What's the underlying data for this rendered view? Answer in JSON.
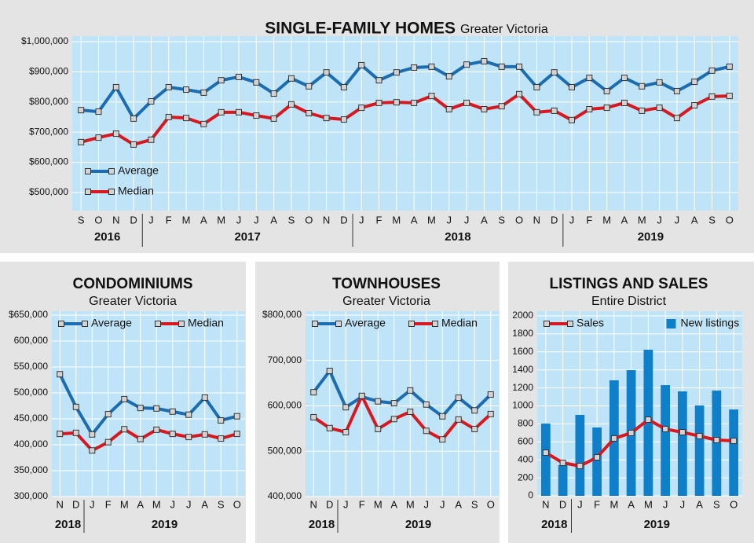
{
  "chart_data": [
    {
      "type": "line",
      "title": "SINGLE-FAMILY HOMES",
      "subtitle": "Greater Victoria",
      "categories": [
        "S",
        "O",
        "N",
        "D",
        "J",
        "F",
        "M",
        "A",
        "M",
        "J",
        "J",
        "A",
        "S",
        "O",
        "N",
        "D",
        "J",
        "F",
        "M",
        "A",
        "M",
        "J",
        "J",
        "A",
        "S",
        "O",
        "N",
        "D",
        "J",
        "F",
        "M",
        "A",
        "M",
        "J",
        "J",
        "A",
        "S",
        "O"
      ],
      "years": [
        "2016",
        "2017",
        "2018",
        "2019"
      ],
      "series": [
        {
          "name": "Average",
          "color": "#1b6cb0",
          "values": [
            773000,
            768000,
            849000,
            745000,
            802000,
            849000,
            841000,
            831000,
            872000,
            883000,
            865000,
            828000,
            878000,
            852000,
            898000,
            849000,
            922000,
            872000,
            898000,
            914000,
            917000,
            885000,
            924000,
            935000,
            917000,
            917000,
            849000,
            898000,
            849000,
            880000,
            836000,
            880000,
            852000,
            865000,
            836000,
            867000,
            904000,
            917000
          ]
        },
        {
          "name": "Median",
          "color": "#d7191f",
          "values": [
            667000,
            682000,
            695000,
            659000,
            675000,
            750000,
            747000,
            727000,
            766000,
            766000,
            755000,
            745000,
            792000,
            763000,
            747000,
            742000,
            781000,
            797000,
            799000,
            797000,
            820000,
            776000,
            797000,
            776000,
            786000,
            826000,
            766000,
            771000,
            740000,
            776000,
            781000,
            797000,
            771000,
            781000,
            747000,
            789000,
            818000,
            820000
          ]
        }
      ],
      "ylim": [
        440000,
        1000000
      ],
      "yticks": [
        {
          "value": 500000,
          "label": "$500,000"
        },
        {
          "value": 600000,
          "label": "$600,000"
        },
        {
          "value": 700000,
          "label": "$700,000"
        },
        {
          "value": 800000,
          "label": "$800,000"
        },
        {
          "value": 900000,
          "label": "$900,000"
        },
        {
          "value": 1000000,
          "label": "$1,000,000"
        }
      ],
      "grid": true,
      "legend": "lower left"
    },
    {
      "type": "line",
      "title": "CONDOMINIUMS",
      "subtitle": "Greater Victoria",
      "categories": [
        "N",
        "D",
        "J",
        "F",
        "M",
        "A",
        "M",
        "J",
        "J",
        "A",
        "S",
        "O"
      ],
      "years": [
        "2018",
        "2019"
      ],
      "series": [
        {
          "name": "Average",
          "color": "#1b6cb0",
          "values": [
            536000,
            473000,
            420000,
            459000,
            488000,
            471000,
            470000,
            464000,
            458000,
            491000,
            447000,
            455000
          ]
        },
        {
          "name": "Median",
          "color": "#d7191f",
          "values": [
            421000,
            423000,
            389000,
            405000,
            430000,
            411000,
            429000,
            421000,
            415000,
            420000,
            412000,
            421000
          ]
        }
      ],
      "ylim": [
        300000,
        650000
      ],
      "yticks": [
        {
          "value": 300000,
          "label": "300,000"
        },
        {
          "value": 350000,
          "label": "350,000"
        },
        {
          "value": 400000,
          "label": "400,000"
        },
        {
          "value": 450000,
          "label": "450,000"
        },
        {
          "value": 500000,
          "label": "500,000"
        },
        {
          "value": 550000,
          "label": "550,000"
        },
        {
          "value": 600000,
          "label": "600,000"
        },
        {
          "value": 650000,
          "label": "$650,000"
        }
      ],
      "grid": true,
      "legend": "upper center"
    },
    {
      "type": "line",
      "title": "TOWNHOUSES",
      "subtitle": "Greater Victoria",
      "categories": [
        "N",
        "D",
        "J",
        "F",
        "M",
        "A",
        "M",
        "J",
        "J",
        "A",
        "S",
        "O"
      ],
      "years": [
        "2018",
        "2019"
      ],
      "series": [
        {
          "name": "Average",
          "color": "#1b6cb0",
          "values": [
            630000,
            677000,
            597000,
            620000,
            610000,
            606000,
            634000,
            603000,
            577000,
            618000,
            590000,
            625000
          ]
        },
        {
          "name": "Median",
          "color": "#d7191f",
          "values": [
            575000,
            551000,
            542000,
            622000,
            549000,
            571000,
            587000,
            545000,
            526000,
            570000,
            549000,
            582000
          ]
        }
      ],
      "ylim": [
        400000,
        800000
      ],
      "yticks": [
        {
          "value": 400000,
          "label": "400,000"
        },
        {
          "value": 500000,
          "label": "500,000"
        },
        {
          "value": 600000,
          "label": "600,000"
        },
        {
          "value": 700000,
          "label": "700,000"
        },
        {
          "value": 800000,
          "label": "$800,000"
        }
      ],
      "grid": true,
      "legend": "upper center"
    },
    {
      "type": "combo",
      "title": "LISTINGS AND SALES",
      "subtitle": "Entire District",
      "categories": [
        "N",
        "D",
        "J",
        "F",
        "M",
        "A",
        "M",
        "J",
        "J",
        "A",
        "S",
        "O"
      ],
      "years": [
        "2018",
        "2019"
      ],
      "series": [
        {
          "name": "Sales",
          "color": "#d7191f",
          "kind": "line",
          "values": [
            480,
            367,
            332,
            428,
            638,
            699,
            847,
            742,
            707,
            664,
            620,
            611
          ]
        },
        {
          "name": "New listings",
          "color": "#0f7fc9",
          "kind": "bar",
          "values": [
            803,
            340,
            900,
            760,
            1284,
            1397,
            1624,
            1231,
            1161,
            1004,
            1170,
            960
          ]
        }
      ],
      "ylim": [
        0,
        2000
      ],
      "yticks": [
        0,
        200,
        400,
        600,
        800,
        1000,
        1200,
        1400,
        1600,
        1800,
        2000
      ],
      "grid": true,
      "legend": "upper center"
    }
  ]
}
